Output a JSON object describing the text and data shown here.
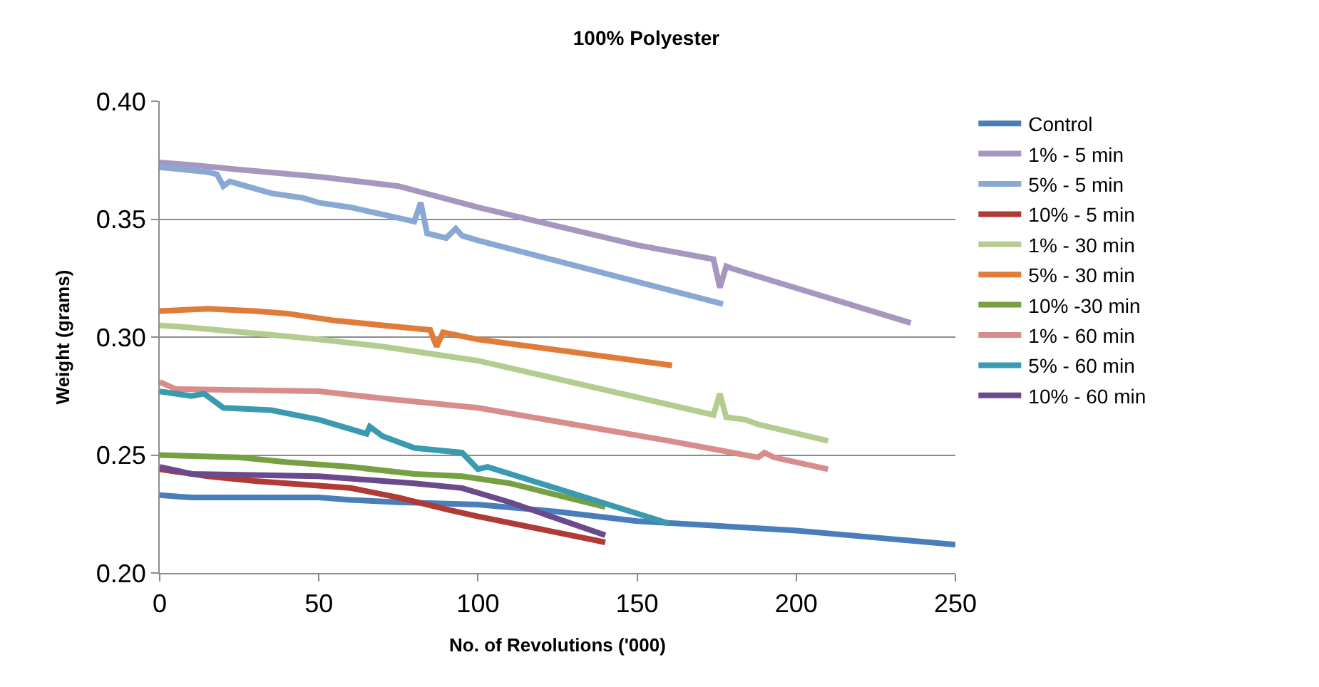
{
  "chart_data": {
    "type": "line",
    "title": "100% Polyester",
    "xlabel": "No. of Revolutions ('000)",
    "ylabel": "Weight (grams)",
    "xlim": [
      0,
      250
    ],
    "xticks": [
      0,
      50,
      100,
      150,
      200,
      250
    ],
    "ylim": [
      0.2,
      0.4
    ],
    "yticks": [
      {
        "value": 0.2,
        "label": "0.20"
      },
      {
        "value": 0.25,
        "label": "0.25"
      },
      {
        "value": 0.3,
        "label": "0.30"
      },
      {
        "value": 0.35,
        "label": "0.35"
      },
      {
        "value": 0.4,
        "label": "0.40"
      }
    ],
    "grid": "y",
    "legend": "right",
    "marker": "none",
    "line_style": "solid",
    "series": [
      {
        "name": "Control",
        "color": "#4a7ebb",
        "x": [
          0,
          10,
          25,
          40,
          50,
          60,
          75,
          100,
          125,
          150,
          175,
          200,
          225,
          250
        ],
        "values": [
          0.233,
          0.232,
          0.232,
          0.232,
          0.232,
          0.231,
          0.23,
          0.229,
          0.226,
          0.222,
          0.22,
          0.218,
          0.215,
          0.212
        ]
      },
      {
        "name": "1% - 5 min",
        "color": "#a597bf",
        "x": [
          0,
          10,
          25,
          50,
          75,
          100,
          125,
          150,
          174,
          176,
          178,
          180,
          236
        ],
        "values": [
          0.374,
          0.373,
          0.371,
          0.368,
          0.364,
          0.355,
          0.347,
          0.339,
          0.333,
          0.321,
          0.33,
          0.329,
          0.306
        ]
      },
      {
        "name": "5% - 5 min",
        "color": "#8aa8d4",
        "x": [
          0,
          15,
          18,
          20,
          22,
          35,
          45,
          50,
          60,
          70,
          80,
          82,
          84,
          90,
          93,
          95,
          100,
          177
        ],
        "values": [
          0.372,
          0.37,
          0.369,
          0.364,
          0.366,
          0.361,
          0.359,
          0.357,
          0.355,
          0.352,
          0.349,
          0.357,
          0.344,
          0.342,
          0.346,
          0.343,
          0.341,
          0.314
        ]
      },
      {
        "name": "10% - 5 min",
        "color": "#b03a36",
        "x": [
          0,
          15,
          30,
          60,
          75,
          90,
          100,
          140
        ],
        "values": [
          0.244,
          0.241,
          0.239,
          0.236,
          0.232,
          0.227,
          0.224,
          0.213
        ]
      },
      {
        "name": "1% - 30 min",
        "color": "#b3cc8f",
        "x": [
          0,
          10,
          35,
          50,
          70,
          85,
          100,
          174,
          176,
          178,
          184,
          188,
          210
        ],
        "values": [
          0.305,
          0.304,
          0.301,
          0.299,
          0.296,
          0.293,
          0.29,
          0.267,
          0.276,
          0.266,
          0.265,
          0.263,
          0.256
        ]
      },
      {
        "name": "5% - 30 min",
        "color": "#e07b39",
        "x": [
          0,
          15,
          30,
          40,
          55,
          70,
          85,
          87,
          89,
          100,
          161
        ],
        "values": [
          0.311,
          0.312,
          0.311,
          0.31,
          0.307,
          0.305,
          0.303,
          0.296,
          0.302,
          0.299,
          0.288
        ]
      },
      {
        "name": "10% -30 min",
        "color": "#77a043",
        "x": [
          0,
          25,
          40,
          60,
          80,
          95,
          110,
          140
        ],
        "values": [
          0.25,
          0.249,
          0.247,
          0.245,
          0.242,
          0.241,
          0.238,
          0.228
        ]
      },
      {
        "name": "1% - 60 min",
        "color": "#d88c8c",
        "x": [
          0,
          5,
          50,
          70,
          100,
          130,
          160,
          188,
          190,
          193,
          210
        ],
        "values": [
          0.281,
          0.278,
          0.277,
          0.274,
          0.27,
          0.263,
          0.256,
          0.249,
          0.251,
          0.249,
          0.244
        ]
      },
      {
        "name": "5% - 60 min",
        "color": "#3a9ab0",
        "x": [
          0,
          10,
          14,
          20,
          35,
          50,
          65,
          66,
          70,
          80,
          95,
          100,
          103,
          160
        ],
        "values": [
          0.277,
          0.275,
          0.276,
          0.27,
          0.269,
          0.265,
          0.259,
          0.262,
          0.258,
          0.253,
          0.251,
          0.244,
          0.245,
          0.221
        ]
      },
      {
        "name": "10% - 60 min",
        "color": "#6a4a8c",
        "x": [
          0,
          10,
          50,
          80,
          95,
          110,
          140
        ],
        "values": [
          0.245,
          0.242,
          0.241,
          0.238,
          0.236,
          0.23,
          0.216
        ]
      }
    ]
  }
}
